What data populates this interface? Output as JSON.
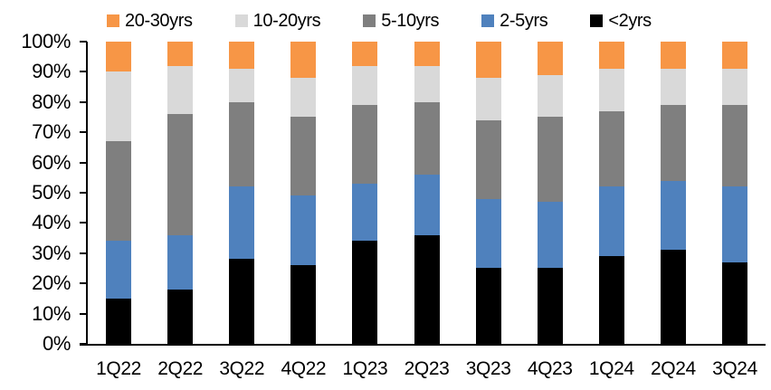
{
  "chart_data": {
    "type": "bar",
    "stacked": true,
    "percent_stacked": true,
    "title": "",
    "xlabel": "",
    "ylabel": "",
    "grid": false,
    "legend_position": "top",
    "categories": [
      "1Q22",
      "2Q22",
      "3Q22",
      "4Q22",
      "1Q23",
      "2Q23",
      "3Q23",
      "4Q23",
      "1Q24",
      "2Q24",
      "3Q24"
    ],
    "series": [
      {
        "name": "20-30yrs",
        "color": "#F79646",
        "values": [
          10,
          8,
          9,
          12,
          8,
          8,
          12,
          11,
          9,
          9,
          9
        ]
      },
      {
        "name": "10-20yrs",
        "color": "#D9D9D9",
        "values": [
          23,
          16,
          11,
          13,
          13,
          12,
          14,
          14,
          14,
          12,
          12
        ]
      },
      {
        "name": "5-10yrs",
        "color": "#7F7F7F",
        "values": [
          33,
          40,
          28,
          26,
          26,
          24,
          26,
          28,
          25,
          25,
          27
        ]
      },
      {
        "name": "2-5yrs",
        "color": "#4F81BD",
        "values": [
          19,
          18,
          24,
          23,
          19,
          20,
          23,
          22,
          23,
          23,
          25
        ]
      },
      {
        "name": "<2yrs",
        "color": "#000000",
        "values": [
          15,
          18,
          28,
          26,
          34,
          36,
          25,
          25,
          29,
          31,
          27
        ]
      }
    ],
    "y_axis": {
      "min": 0,
      "max": 100,
      "tick_step": 10,
      "tick_labels_top_down": [
        "100%",
        "90%",
        "80%",
        "70%",
        "60%",
        "50%",
        "40%",
        "30%",
        "20%",
        "10%",
        "0%"
      ]
    },
    "axis_color": "#000000",
    "text_color": "#000000",
    "background_color": "#ffffff"
  }
}
